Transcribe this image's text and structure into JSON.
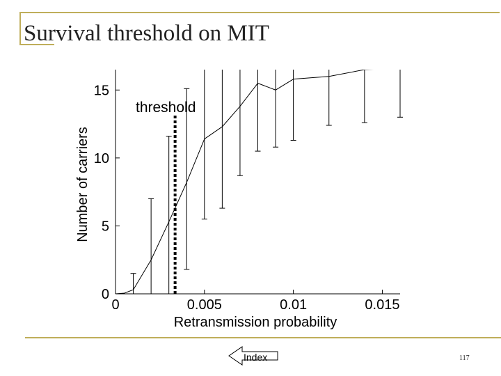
{
  "slide": {
    "title": "Survival threshold on MIT",
    "index_label": "Index",
    "page_number": "117"
  },
  "colors": {
    "frame": "#bfae5a",
    "ink": "#000000"
  },
  "chart_data": {
    "type": "line",
    "title": "",
    "xlabel": "Retransmission probability",
    "ylabel": "Number of carriers",
    "xlim": [
      0,
      0.016
    ],
    "ylim": [
      0,
      16.5
    ],
    "x_ticks": [
      0,
      0.005,
      0.01,
      0.015
    ],
    "x_tick_labels": [
      "0",
      "0.005",
      "0.01",
      "0.015"
    ],
    "y_ticks": [
      0,
      5,
      10,
      15
    ],
    "y_tick_labels": [
      "0",
      "5",
      "10",
      "15"
    ],
    "grid": false,
    "legend": "none",
    "series": [
      {
        "x": [
          0,
          0.0005,
          0.001,
          0.002,
          0.003,
          0.004,
          0.005,
          0.006,
          0.007,
          0.008,
          0.009,
          0.01,
          0.012,
          0.014,
          0.016
        ],
        "y": [
          0,
          0.05,
          0.3,
          2.5,
          5.3,
          8.2,
          11.4,
          12.3,
          13.8,
          15.5,
          15.0,
          15.8,
          16.0,
          16.5,
          16.6
        ],
        "error_lower": [
          0,
          0,
          0.3,
          2.5,
          5.3,
          6.4,
          5.9,
          6.0,
          5.1,
          5.0,
          4.2,
          4.5,
          3.6,
          3.9,
          3.6
        ],
        "error_upper": [
          0,
          0,
          1.2,
          4.5,
          6.3,
          6.9,
          7.1,
          7.2,
          7.2,
          7.2,
          7.2,
          7.2,
          7.2,
          7.2,
          7.2
        ]
      }
    ],
    "threshold": {
      "x": 0.00335,
      "label": "threshold"
    }
  }
}
